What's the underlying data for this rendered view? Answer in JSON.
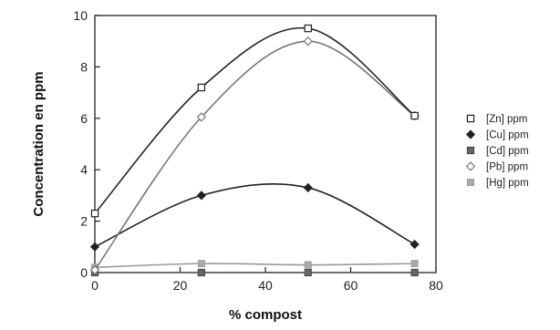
{
  "chart_data": {
    "type": "line",
    "xlabel": "% compost",
    "ylabel": "Concentration en ppm",
    "xlim": [
      0,
      80
    ],
    "ylim": [
      0,
      10
    ],
    "xticks": [
      "0",
      "20",
      "40",
      "60",
      "80"
    ],
    "yticks": [
      "0",
      "2",
      "4",
      "6",
      "8",
      "10"
    ],
    "x": [
      0,
      25,
      50,
      75
    ],
    "grid": false,
    "legend_position": "right",
    "series": [
      {
        "name": "[Zn] ppm",
        "values": [
          2.3,
          7.2,
          9.5,
          6.1
        ],
        "marker": "open-square",
        "color": "#222222"
      },
      {
        "name": "[Cu] ppm",
        "values": [
          1.0,
          3.0,
          3.3,
          1.1
        ],
        "marker": "filled-diamond",
        "color": "#222222"
      },
      {
        "name": "[Cd] ppm",
        "values": [
          0.0,
          0.0,
          0.0,
          0.0
        ],
        "marker": "dark-square",
        "color": "#555555"
      },
      {
        "name": "[Pb] ppm",
        "values": [
          0.1,
          6.05,
          9.0,
          6.1
        ],
        "marker": "open-diamond",
        "color": "#777777"
      },
      {
        "name": "[Hg] ppm",
        "values": [
          0.2,
          0.35,
          0.3,
          0.35
        ],
        "marker": "light-square",
        "color": "#9a9a9a"
      }
    ]
  }
}
